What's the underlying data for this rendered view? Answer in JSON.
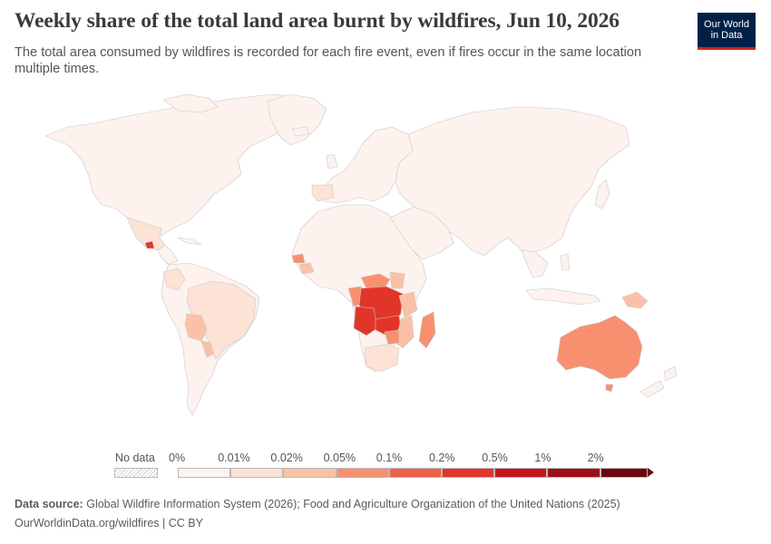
{
  "header": {
    "title": "Weekly share of the total land area burnt by wildfires, Jun 10, 2026",
    "subtitle": "The total area consumed by wildfires is recorded for each fire event, even if fires occur in the same location multiple times.",
    "logo_line1": "Our World",
    "logo_line2": "in Data"
  },
  "legend": {
    "no_data_label": "No data",
    "bins": [
      {
        "label": "0%",
        "color": "#fef4ee"
      },
      {
        "label": "0.01%",
        "color": "#fde2d6"
      },
      {
        "label": "0.02%",
        "color": "#fbc1a8"
      },
      {
        "label": "0.05%",
        "color": "#f8906f"
      },
      {
        "label": "0.1%",
        "color": "#f0614a"
      },
      {
        "label": "0.2%",
        "color": "#e2352a"
      },
      {
        "label": "0.5%",
        "color": "#c4161c"
      },
      {
        "label": "1%",
        "color": "#a01019"
      },
      {
        "label": "2%",
        "color": "#6e0410"
      }
    ]
  },
  "footer": {
    "source_prefix": "Data source:",
    "source_text": "Global Wildfire Information System (2026); Food and Agriculture Organization of the United Nations (2025)",
    "url_line": "OurWorldinData.org/wildfires | CC BY"
  },
  "colors": {
    "base_land": "#fdf2ed",
    "border": "#c9c9c9"
  }
}
